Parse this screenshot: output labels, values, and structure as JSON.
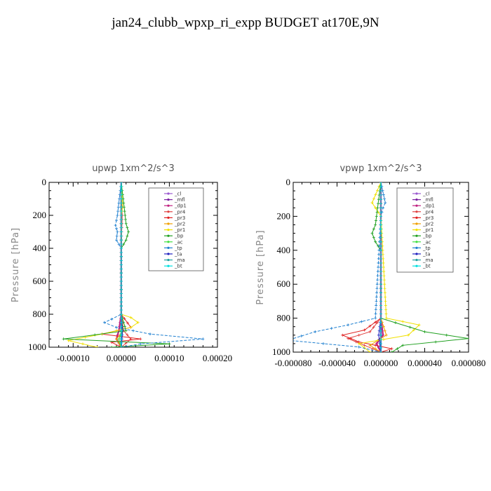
{
  "page_title": "jan24_clubb_wpxp_ri_expp  BUDGET at170E,9N",
  "chart_data": [
    {
      "type": "line",
      "title": "upwp   1xm^2/s^3",
      "ylabel": "Pressure [hPa]",
      "ylim": [
        1000,
        0
      ],
      "xlim": [
        -0.00015,
        0.0002
      ],
      "xticks": [
        -0.0001,
        0,
        0.0001,
        0.0002
      ],
      "xtick_labels": [
        "-0.00010",
        "0.00000",
        "0.00010",
        "0.00020"
      ],
      "yticks": [
        0,
        200,
        400,
        600,
        800,
        1000
      ],
      "ytick_labels": [
        "0",
        "200",
        "400",
        "600",
        "800",
        "1000"
      ],
      "legend_position": "top-right",
      "series": [
        {
          "name": "_cl",
          "color": "#9b59d0",
          "pressure": [
            0,
            200,
            400,
            600,
            800,
            900,
            1000
          ],
          "values": [
            0,
            0,
            0,
            0,
            0,
            0,
            0
          ]
        },
        {
          "name": "_mfl",
          "color": "#7a1fa0",
          "pressure": [
            0,
            200,
            400,
            600,
            800,
            900,
            1000
          ],
          "values": [
            0,
            0,
            0,
            0,
            0,
            0,
            0
          ]
        },
        {
          "name": "_dp1",
          "color": "#c02080",
          "pressure": [
            0,
            200,
            400,
            600,
            800,
            900,
            950,
            1000
          ],
          "values": [
            0,
            0,
            0,
            0,
            0,
            -5e-06,
            -1e-05,
            0
          ]
        },
        {
          "name": "_pr4",
          "color": "#e04040",
          "pressure": [
            0,
            200,
            400,
            800,
            900,
            950,
            1000
          ],
          "values": [
            0,
            2e-06,
            0,
            0,
            5e-06,
            2e-05,
            0
          ]
        },
        {
          "name": "_pr3",
          "color": "#e02020",
          "pressure": [
            0,
            800,
            880,
            920,
            950,
            970,
            1000
          ],
          "values": [
            0,
            0,
            2e-05,
            -4e-05,
            4e-05,
            -2e-05,
            0
          ]
        },
        {
          "name": "_pr2",
          "color": "#f0a000",
          "pressure": [
            0,
            800,
            900,
            950,
            1000
          ],
          "values": [
            0,
            0,
            5e-06,
            -1e-05,
            0
          ]
        },
        {
          "name": "_pr1",
          "color": "#f0e000",
          "pressure": [
            0,
            150,
            200,
            800,
            820,
            850,
            880,
            920,
            960,
            1000
          ],
          "values": [
            0,
            3e-06,
            0,
            0,
            2e-05,
            3.5e-05,
            2e-05,
            -4e-05,
            -0.00011,
            -5e-05
          ]
        },
        {
          "name": "_bp",
          "color": "#20a020",
          "pressure": [
            0,
            250,
            300,
            350,
            400,
            800,
            900,
            950,
            980,
            1000
          ],
          "values": [
            0,
            1e-05,
            1.5e-05,
            1e-05,
            0,
            0,
            1e-05,
            -0.00012,
            0.0001,
            -2e-05
          ]
        },
        {
          "name": "_ac",
          "color": "#40e040",
          "pressure": [
            0,
            200,
            400,
            800,
            900,
            950,
            1000
          ],
          "values": [
            0,
            0,
            0,
            0,
            3e-06,
            -5e-06,
            0
          ]
        },
        {
          "name": "_tp",
          "color": "#2080d0",
          "pressure": [
            0,
            200,
            260,
            300,
            350,
            400,
            800,
            830,
            850,
            880,
            920,
            950,
            980,
            1000
          ],
          "values": [
            0,
            -8e-06,
            -1.2e-05,
            -8e-06,
            -1e-05,
            0,
            0,
            -2e-05,
            -3.5e-05,
            -1e-05,
            6e-05,
            0.00017,
            4e-05,
            0
          ]
        },
        {
          "name": "_ta",
          "color": "#2020c0",
          "pressure": [
            0,
            800,
            900,
            1000
          ],
          "values": [
            0,
            0,
            3e-06,
            0
          ]
        },
        {
          "name": "_ma",
          "color": "#20a0a0",
          "pressure": [
            0,
            800,
            900,
            1000
          ],
          "values": [
            0,
            0,
            0,
            0
          ]
        },
        {
          "name": "_bt",
          "color": "#00e0e0",
          "pressure": [
            0,
            800,
            900,
            1000
          ],
          "values": [
            0,
            0,
            0,
            0
          ]
        }
      ]
    },
    {
      "type": "line",
      "title": "vpwp   1xm^2/s^3",
      "ylabel": "Pressure [hPa]",
      "ylim": [
        1000,
        0
      ],
      "xlim": [
        -8e-05,
        8e-05
      ],
      "xticks": [
        -8e-05,
        -4e-05,
        0,
        4e-05,
        8e-05
      ],
      "xtick_labels": [
        "-0.000080",
        "-0.000040",
        "0.000000",
        "0.000040",
        "0.000080"
      ],
      "yticks": [
        0,
        200,
        400,
        600,
        800,
        1000
      ],
      "ytick_labels": [
        "0",
        "200",
        "400",
        "600",
        "800",
        "1000"
      ],
      "legend_position": "top-right",
      "series": [
        {
          "name": "_cl",
          "color": "#9b59d0",
          "pressure": [
            0,
            200,
            400,
            600,
            800,
            900,
            1000
          ],
          "values": [
            0,
            0,
            0,
            0,
            0,
            0,
            0
          ]
        },
        {
          "name": "_mfl",
          "color": "#7a1fa0",
          "pressure": [
            0,
            200,
            400,
            600,
            800,
            900,
            1000
          ],
          "values": [
            0,
            0,
            0,
            0,
            0,
            0,
            0
          ]
        },
        {
          "name": "_dp1",
          "color": "#c02080",
          "pressure": [
            0,
            200,
            400,
            800,
            900,
            950,
            1000
          ],
          "values": [
            0,
            0,
            0,
            0,
            2e-06,
            -4e-06,
            0
          ]
        },
        {
          "name": "_pr4",
          "color": "#e04040",
          "pressure": [
            0,
            800,
            880,
            920,
            960,
            1000
          ],
          "values": [
            0,
            0,
            -1e-05,
            -3e-05,
            -1.5e-05,
            0
          ]
        },
        {
          "name": "_pr3",
          "color": "#e02020",
          "pressure": [
            0,
            800,
            870,
            900,
            940,
            980,
            1000
          ],
          "values": [
            0,
            0,
            -1.5e-05,
            -3.5e-05,
            -2e-05,
            1e-05,
            0
          ]
        },
        {
          "name": "_pr2",
          "color": "#f0a000",
          "pressure": [
            0,
            800,
            900,
            960,
            1000
          ],
          "values": [
            0,
            0,
            5e-06,
            -1e-05,
            0
          ]
        },
        {
          "name": "_pr1",
          "color": "#f0e000",
          "pressure": [
            0,
            120,
            150,
            200,
            800,
            840,
            900,
            950,
            1000
          ],
          "values": [
            0,
            -8e-06,
            -5e-06,
            0,
            5e-06,
            3.5e-05,
            2.5e-05,
            -2e-05,
            -1e-05
          ]
        },
        {
          "name": "_bp",
          "color": "#20a020",
          "pressure": [
            0,
            250,
            300,
            350,
            400,
            800,
            880,
            920,
            960,
            1000
          ],
          "values": [
            0,
            -5e-06,
            -8e-06,
            -5e-06,
            0,
            0,
            4e-05,
            8e-05,
            2e-05,
            1e-05
          ]
        },
        {
          "name": "_ac",
          "color": "#40e040",
          "pressure": [
            0,
            200,
            400,
            800,
            1000
          ],
          "values": [
            0,
            0,
            0,
            0,
            0
          ]
        },
        {
          "name": "_tp",
          "color": "#2080d0",
          "pressure": [
            0,
            120,
            150,
            200,
            800,
            840,
            880,
            930,
            970,
            1000
          ],
          "values": [
            0,
            4e-06,
            2e-06,
            0,
            -5e-06,
            -3e-05,
            -6e-05,
            -8.5e-05,
            -2e-05,
            0
          ]
        },
        {
          "name": "_ta",
          "color": "#2020c0",
          "pressure": [
            0,
            800,
            900,
            1000
          ],
          "values": [
            0,
            0,
            -2e-06,
            0
          ]
        },
        {
          "name": "_ma",
          "color": "#20a0a0",
          "pressure": [
            0,
            800,
            900,
            1000
          ],
          "values": [
            0,
            0,
            0,
            0
          ]
        },
        {
          "name": "_bt",
          "color": "#00e0e0",
          "pressure": [
            0,
            800,
            900,
            1000
          ],
          "values": [
            0,
            0,
            0,
            0
          ]
        }
      ]
    }
  ]
}
